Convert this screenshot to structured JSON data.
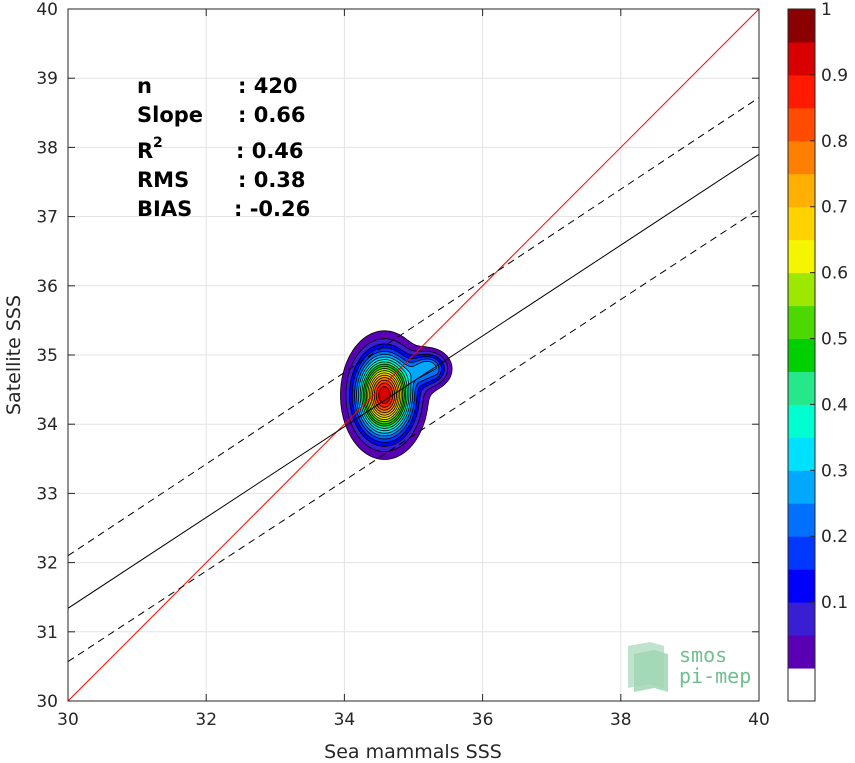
{
  "chart_data": {
    "type": "scatter",
    "xlabel": "Sea mammals SSS",
    "ylabel": "Satellite SSS",
    "xlim": [
      30,
      40
    ],
    "ylim": [
      30,
      40
    ],
    "x_ticks": [
      "30",
      "32",
      "34",
      "36",
      "38",
      "40"
    ],
    "y_ticks": [
      "30",
      "31",
      "32",
      "33",
      "34",
      "35",
      "36",
      "37",
      "38",
      "39",
      "40"
    ],
    "grid": true,
    "stats": [
      {
        "label": "n",
        "value": ": 420"
      },
      {
        "label": "Slope",
        "value": ": 0.66"
      },
      {
        "label": "R",
        "sup": "2",
        "value": ": 0.46"
      },
      {
        "label": "RMS",
        "value": ": 0.38"
      },
      {
        "label": "BIAS",
        "value": ": -0.26"
      }
    ],
    "lines": [
      {
        "role": "identity",
        "color": "#ff0000",
        "style": "solid",
        "x": [
          30,
          40
        ],
        "y": [
          30,
          40
        ]
      },
      {
        "role": "regression",
        "color": "#000000",
        "style": "solid",
        "x": [
          30,
          40
        ],
        "y": [
          31.34,
          37.9
        ]
      },
      {
        "role": "regression-upper",
        "color": "#000000",
        "style": "dashed",
        "x": [
          30,
          40
        ],
        "y": [
          32.1,
          38.72
        ]
      },
      {
        "role": "regression-lower",
        "color": "#000000",
        "style": "dashed",
        "x": [
          30,
          40
        ],
        "y": [
          30.57,
          37.11
        ]
      }
    ],
    "density_peaks": [
      {
        "x": 34.58,
        "y": 34.42,
        "sx": 0.26,
        "sy": 0.38,
        "w": 1.0
      },
      {
        "x": 35.22,
        "y": 34.8,
        "sx": 0.17,
        "sy": 0.15,
        "w": 0.36
      }
    ],
    "colorbar": {
      "ticks": [
        "0.1",
        "0.2",
        "0.3",
        "0.4",
        "0.5",
        "0.6",
        "0.7",
        "0.8",
        "0.9",
        "1"
      ],
      "levels": 20,
      "colors": [
        "#ffffff",
        "#5a00b4",
        "#3a1fd2",
        "#0000ff",
        "#0038ff",
        "#0070ff",
        "#00a8ff",
        "#00e0ff",
        "#00ffd0",
        "#26e88a",
        "#00d000",
        "#4cd800",
        "#9ee800",
        "#f5f500",
        "#ffd200",
        "#ffb000",
        "#ff8000",
        "#ff4c00",
        "#ff1a00",
        "#d80000",
        "#8b0000"
      ]
    }
  },
  "logo": {
    "line1": "smos",
    "line2": "pi-mep"
  }
}
